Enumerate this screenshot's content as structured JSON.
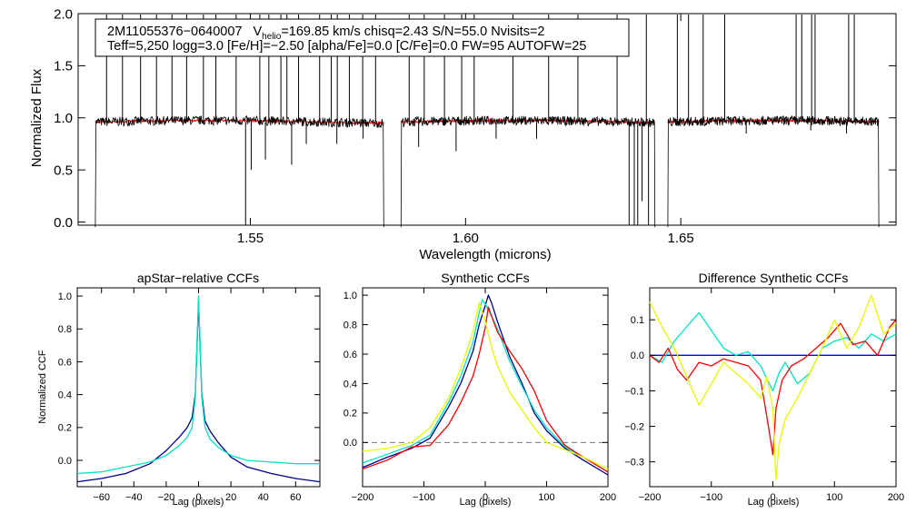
{
  "charts": {
    "spectrum": {
      "type": "line",
      "title": "",
      "xlabel": "Wavelength (microns)",
      "ylabel": "Normalized Flux",
      "xlim": [
        1.51,
        1.7
      ],
      "ylim": [
        -0.03,
        2.0
      ],
      "xticks": [
        {
          "value": 1.55,
          "label": "1.55"
        },
        {
          "value": 1.6,
          "label": "1.60"
        },
        {
          "value": 1.65,
          "label": "1.65"
        }
      ],
      "yticks": [
        {
          "value": 0.0,
          "label": "0.0"
        },
        {
          "value": 0.5,
          "label": "0.5"
        },
        {
          "value": 1.0,
          "label": "1.0"
        },
        {
          "value": 1.5,
          "label": "1.5"
        },
        {
          "value": 2.0,
          "label": "2.0"
        }
      ],
      "chips": [
        [
          1.514,
          1.581
        ],
        [
          1.585,
          1.644
        ],
        [
          1.647,
          1.696
        ]
      ],
      "series": [
        {
          "name": "observed",
          "color": "#000000",
          "continuum": 0.96
        },
        {
          "name": "model",
          "color": "#ff0000",
          "continuum": 0.96
        }
      ],
      "emission_spikes": [
        1.5166,
        1.5203,
        1.5245,
        1.5282,
        1.5318,
        1.5352,
        1.5391,
        1.542,
        1.5467,
        1.5522,
        1.5543,
        1.5571,
        1.5585,
        1.5612,
        1.5661,
        1.5688,
        1.5702,
        1.573,
        1.5761,
        1.5791,
        1.5869,
        1.5904,
        1.5951,
        1.5991,
        1.602,
        1.611,
        1.6193,
        1.6261,
        1.6352,
        1.642,
        1.6492,
        1.6518,
        1.6552,
        1.6602,
        1.6768,
        1.6781,
        1.6804,
        1.6812,
        1.689,
        1.6903
      ],
      "absorption_dips": [
        {
          "x": 1.5489,
          "y": -0.05
        },
        {
          "x": 1.5502,
          "y": 0.5
        },
        {
          "x": 1.5535,
          "y": 0.6
        },
        {
          "x": 1.563,
          "y": 0.75
        },
        {
          "x": 1.5596,
          "y": 0.55
        },
        {
          "x": 1.5701,
          "y": 0.75
        },
        {
          "x": 1.5762,
          "y": 0.8
        },
        {
          "x": 1.5891,
          "y": 0.72
        },
        {
          "x": 1.5978,
          "y": 0.68
        },
        {
          "x": 1.6071,
          "y": 0.8
        },
        {
          "x": 1.6165,
          "y": 0.8
        },
        {
          "x": 1.638,
          "y": -0.05
        },
        {
          "x": 1.6392,
          "y": -0.05
        },
        {
          "x": 1.64,
          "y": -0.05
        },
        {
          "x": 1.641,
          "y": 0.2
        },
        {
          "x": 1.6425,
          "y": -0.05
        },
        {
          "x": 1.6652,
          "y": 0.85
        },
        {
          "x": 1.6802,
          "y": 0.88
        },
        {
          "x": 1.6885,
          "y": 0.85
        }
      ],
      "annotation": {
        "line1_object": "2M11055376−0640007",
        "line1_v": "V",
        "line1_vsub": "helio",
        "line1_rest": "=169.85 km/s  chisq=2.43  S/N=55.0  Nvisits=2",
        "line2": "Teff=5,250 logg=3.0 [Fe/H]=−2.50 [alpha/Fe]=0.0 [C/Fe]=0.0 FW=95 AUTOFW=25"
      }
    },
    "ccf_apstar": {
      "type": "line",
      "title": "apStar−relative CCFs",
      "xlabel": "Lag (pixels)",
      "ylabel": "Normalized CCF",
      "xlim": [
        -75,
        75
      ],
      "ylim": [
        -0.16,
        1.05
      ],
      "xticks": [
        {
          "value": -60,
          "label": "−60"
        },
        {
          "value": -40,
          "label": "−40"
        },
        {
          "value": -20,
          "label": "−20"
        },
        {
          "value": 0,
          "label": "0"
        },
        {
          "value": 20,
          "label": "20"
        },
        {
          "value": 40,
          "label": "40"
        },
        {
          "value": 60,
          "label": "60"
        }
      ],
      "yticks": [
        {
          "value": 0.0,
          "label": "0.0"
        },
        {
          "value": 0.2,
          "label": "0.2"
        },
        {
          "value": 0.4,
          "label": "0.4"
        },
        {
          "value": 0.6,
          "label": "0.6"
        },
        {
          "value": 0.8,
          "label": "0.8"
        },
        {
          "value": 1.0,
          "label": "1.0"
        }
      ],
      "series": [
        {
          "name": "visit-1",
          "color": "#00008b",
          "x": [
            -75,
            -60,
            -45,
            -30,
            -20,
            -12,
            -7,
            -4,
            -2,
            -1,
            0,
            1,
            2,
            4,
            7,
            12,
            20,
            30,
            45,
            60,
            75
          ],
          "y": [
            -0.13,
            -0.11,
            -0.08,
            -0.02,
            0.06,
            0.14,
            0.2,
            0.26,
            0.4,
            0.68,
            0.97,
            0.68,
            0.4,
            0.24,
            0.18,
            0.11,
            0.02,
            -0.04,
            -0.08,
            -0.11,
            -0.13
          ]
        },
        {
          "name": "visit-2",
          "color": "#00e5c0",
          "x": [
            -75,
            -60,
            -45,
            -30,
            -20,
            -12,
            -7,
            -4,
            -2,
            -1,
            0,
            1,
            2,
            4,
            7,
            12,
            20,
            30,
            45,
            60,
            75
          ],
          "y": [
            -0.08,
            -0.07,
            -0.04,
            -0.01,
            0.03,
            0.09,
            0.14,
            0.2,
            0.38,
            0.7,
            1.0,
            0.7,
            0.38,
            0.2,
            0.13,
            0.08,
            0.03,
            0.0,
            -0.01,
            -0.02,
            -0.02
          ]
        }
      ]
    },
    "ccf_synth": {
      "type": "line",
      "title": "Synthetic CCFs",
      "xlabel": "Lag (pixels)",
      "ylabel": "",
      "xlim": [
        -200,
        200
      ],
      "ylim": [
        -0.3,
        1.05
      ],
      "reference_y": 0.0,
      "xticks": [
        {
          "value": -200,
          "label": "−200"
        },
        {
          "value": -100,
          "label": "−100"
        },
        {
          "value": 0,
          "label": "0"
        },
        {
          "value": 100,
          "label": "100"
        },
        {
          "value": 200,
          "label": "200"
        }
      ],
      "yticks": [
        {
          "value": 0.0,
          "label": "0.0"
        },
        {
          "value": 0.2,
          "label": "0.2"
        },
        {
          "value": 0.4,
          "label": "0.4"
        },
        {
          "value": 0.6,
          "label": "0.6"
        },
        {
          "value": 0.8,
          "label": "0.8"
        },
        {
          "value": 1.0,
          "label": "1.0"
        }
      ],
      "series": [
        {
          "name": "blue",
          "color": "#00008b",
          "x": [
            -200,
            -160,
            -120,
            -90,
            -60,
            -40,
            -20,
            -10,
            0,
            5,
            10,
            20,
            40,
            60,
            80,
            100,
            130,
            160,
            200
          ],
          "y": [
            -0.17,
            -0.1,
            -0.04,
            0.03,
            0.24,
            0.4,
            0.62,
            0.8,
            0.93,
            1.0,
            0.95,
            0.82,
            0.58,
            0.4,
            0.2,
            0.08,
            -0.04,
            -0.12,
            -0.22
          ]
        },
        {
          "name": "cyan",
          "color": "#00e5c0",
          "x": [
            -200,
            -160,
            -120,
            -90,
            -60,
            -40,
            -20,
            -10,
            -5,
            0,
            10,
            20,
            40,
            60,
            80,
            100,
            130,
            160,
            200
          ],
          "y": [
            -0.14,
            -0.08,
            -0.02,
            0.05,
            0.27,
            0.45,
            0.68,
            0.88,
            0.97,
            0.94,
            0.86,
            0.77,
            0.55,
            0.38,
            0.22,
            0.1,
            -0.03,
            -0.1,
            -0.2
          ]
        },
        {
          "name": "red",
          "color": "#ff0000",
          "x": [
            -200,
            -160,
            -120,
            -90,
            -60,
            -40,
            -20,
            -10,
            0,
            5,
            10,
            20,
            40,
            60,
            80,
            100,
            130,
            160,
            200
          ],
          "y": [
            -0.18,
            -0.12,
            -0.03,
            -0.02,
            0.12,
            0.27,
            0.45,
            0.6,
            0.78,
            0.92,
            0.86,
            0.75,
            0.62,
            0.5,
            0.35,
            0.15,
            -0.02,
            -0.1,
            -0.2
          ]
        },
        {
          "name": "yellow",
          "color": "#e6ff00",
          "x": [
            -200,
            -160,
            -120,
            -90,
            -60,
            -40,
            -20,
            -10,
            0,
            10,
            20,
            40,
            60,
            80,
            100,
            130,
            160,
            200
          ],
          "y": [
            -0.06,
            -0.04,
            0.0,
            0.1,
            0.3,
            0.5,
            0.75,
            0.95,
            0.82,
            0.65,
            0.52,
            0.34,
            0.22,
            0.1,
            0.0,
            -0.05,
            -0.1,
            -0.18
          ]
        }
      ]
    },
    "ccf_diff": {
      "type": "line",
      "title": "Difference Synthetic CCFs",
      "xlabel": "Lag (pixels)",
      "ylabel": "",
      "xlim": [
        -200,
        200
      ],
      "ylim": [
        -0.37,
        0.19
      ],
      "reference_y": 0.0,
      "xticks": [
        {
          "value": -200,
          "label": "−200"
        },
        {
          "value": -100,
          "label": "−100"
        },
        {
          "value": 0,
          "label": "0"
        },
        {
          "value": 100,
          "label": "100"
        },
        {
          "value": 200,
          "label": "200"
        }
      ],
      "yticks": [
        {
          "value": -0.3,
          "label": "−0.3"
        },
        {
          "value": -0.2,
          "label": "−0.2"
        },
        {
          "value": -0.1,
          "label": "−0.1"
        },
        {
          "value": 0.0,
          "label": "0.0"
        },
        {
          "value": 0.1,
          "label": "0.1"
        }
      ],
      "series": [
        {
          "name": "zero",
          "color": "#0000ff",
          "x": [
            -200,
            200
          ],
          "y": [
            0.0,
            0.0
          ]
        },
        {
          "name": "cyan",
          "color": "#00e5c0",
          "x": [
            -200,
            -180,
            -160,
            -140,
            -120,
            -100,
            -80,
            -60,
            -40,
            -20,
            0,
            10,
            20,
            40,
            60,
            80,
            100,
            120,
            140,
            160,
            180,
            200
          ],
          "y": [
            0.0,
            -0.02,
            0.04,
            0.08,
            0.12,
            0.07,
            0.02,
            0.0,
            0.01,
            -0.03,
            -0.1,
            -0.05,
            -0.02,
            -0.08,
            -0.05,
            0.02,
            0.04,
            0.05,
            0.02,
            0.06,
            0.04,
            0.06
          ]
        },
        {
          "name": "red",
          "color": "#ff0000",
          "x": [
            -200,
            -185,
            -170,
            -155,
            -140,
            -120,
            -100,
            -80,
            -60,
            -40,
            -20,
            -10,
            0,
            5,
            15,
            30,
            50,
            70,
            90,
            110,
            130,
            150,
            170,
            190,
            200
          ],
          "y": [
            0.0,
            -0.02,
            0.02,
            -0.04,
            -0.07,
            -0.02,
            -0.03,
            -0.01,
            -0.02,
            -0.03,
            -0.07,
            -0.17,
            -0.28,
            -0.15,
            -0.07,
            -0.03,
            -0.01,
            0.02,
            0.05,
            0.09,
            0.03,
            0.04,
            0.0,
            0.08,
            0.1
          ]
        },
        {
          "name": "yellow",
          "color": "#e6ff00",
          "x": [
            -200,
            -180,
            -160,
            -140,
            -120,
            -100,
            -80,
            -60,
            -40,
            -20,
            -10,
            0,
            5,
            10,
            20,
            40,
            60,
            80,
            100,
            120,
            140,
            160,
            180,
            200
          ],
          "y": [
            0.15,
            0.08,
            0.02,
            -0.06,
            -0.14,
            -0.08,
            -0.02,
            -0.05,
            -0.08,
            -0.12,
            -0.06,
            -0.15,
            -0.35,
            -0.25,
            -0.18,
            -0.12,
            -0.05,
            0.02,
            0.1,
            0.02,
            0.08,
            0.17,
            0.06,
            0.09
          ]
        }
      ]
    }
  }
}
